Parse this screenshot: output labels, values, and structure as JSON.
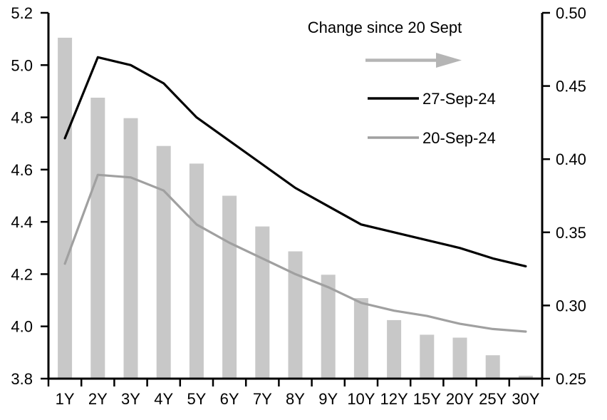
{
  "chart_data": {
    "type": "combo-bar-line",
    "title": "",
    "categories": [
      "1Y",
      "2Y",
      "3Y",
      "4Y",
      "5Y",
      "6Y",
      "7Y",
      "8Y",
      "9Y",
      "10Y",
      "12Y",
      "15Y",
      "20Y",
      "25Y",
      "30Y"
    ],
    "series": [
      {
        "name": "Change since 20 Sept",
        "type": "bar",
        "axis": "right",
        "color": "#C8C8C8",
        "values": [
          0.483,
          0.442,
          0.428,
          0.409,
          0.397,
          0.375,
          0.354,
          0.337,
          0.321,
          0.305,
          0.29,
          0.28,
          0.278,
          0.266,
          0.252
        ]
      },
      {
        "name": "27-Sep-24",
        "type": "line",
        "axis": "left",
        "color": "#000000",
        "values": [
          4.72,
          5.03,
          5.0,
          4.93,
          4.8,
          4.71,
          4.62,
          4.53,
          4.46,
          4.39,
          4.36,
          4.33,
          4.3,
          4.26,
          4.23
        ]
      },
      {
        "name": "20-Sep-24",
        "type": "line",
        "axis": "left",
        "color": "#A0A0A0",
        "values": [
          4.24,
          4.58,
          4.57,
          4.52,
          4.39,
          4.32,
          4.26,
          4.2,
          4.15,
          4.09,
          4.06,
          4.04,
          4.01,
          3.99,
          3.98
        ]
      }
    ],
    "left_axis": {
      "min": 3.8,
      "max": 5.2,
      "step": 0.2,
      "tick_labels": [
        "5.2",
        "5.0",
        "4.8",
        "4.6",
        "4.4",
        "4.2",
        "4.0",
        "3.8"
      ]
    },
    "right_axis": {
      "min": 0.25,
      "max": 0.5,
      "step": 0.05,
      "tick_labels": [
        "0.50",
        "0.45",
        "0.40",
        "0.35",
        "0.30",
        "0.25"
      ]
    },
    "grid": false,
    "legend_position": "top-right-inside"
  },
  "legend": {
    "title": "Change since 20 Sept",
    "arrow_icon": "right-arrow",
    "entries": [
      {
        "label": "27-Sep-24",
        "color": "#000000"
      },
      {
        "label": "20-Sep-24",
        "color": "#A0A0A0"
      }
    ]
  },
  "colors": {
    "bar": "#C8C8C8",
    "line_27_sep": "#000000",
    "line_20_sep": "#A0A0A0",
    "legend_arrow": "#B5B5B5",
    "axis": "#000000",
    "text": "#000000",
    "background": "#FFFFFF"
  }
}
